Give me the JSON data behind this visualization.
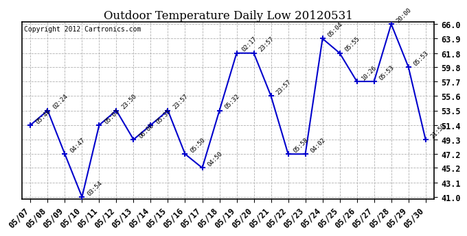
{
  "title": "Outdoor Temperature Daily Low 20120531",
  "copyright": "Copyright 2012 Cartronics.com",
  "x_labels": [
    "05/07",
    "05/08",
    "05/09",
    "05/10",
    "05/11",
    "05/12",
    "05/13",
    "05/14",
    "05/15",
    "05/16",
    "05/17",
    "05/18",
    "05/19",
    "05/20",
    "05/21",
    "05/22",
    "05/23",
    "05/24",
    "05/25",
    "05/26",
    "05/27",
    "05/28",
    "05/29",
    "05/30"
  ],
  "y_values": [
    51.4,
    53.5,
    47.2,
    41.0,
    51.4,
    53.5,
    49.3,
    51.4,
    53.5,
    47.2,
    45.2,
    53.5,
    61.8,
    61.8,
    55.6,
    47.2,
    47.2,
    63.9,
    61.8,
    57.7,
    57.7,
    66.0,
    59.8,
    49.3
  ],
  "point_labels": [
    "05:46",
    "02:24",
    "04:47",
    "03:54",
    "05:03",
    "23:50",
    "06:06",
    "05:35",
    "23:57",
    "05:50",
    "04:50",
    "05:32",
    "02:17",
    "23:57",
    "23:57",
    "05:58",
    "04:02",
    "05:04",
    "05:55",
    "10:26",
    "05:53",
    "20:00",
    "05:53",
    "21:50"
  ],
  "line_color": "#0000cc",
  "marker_color": "#0000cc",
  "bg_color": "#ffffff",
  "grid_color": "#b0b0b0",
  "ylim_min": 41.0,
  "ylim_max": 66.0,
  "yticks": [
    41.0,
    43.1,
    45.2,
    47.2,
    49.3,
    51.4,
    53.5,
    55.6,
    57.7,
    59.8,
    61.8,
    63.9,
    66.0
  ],
  "title_fontsize": 12,
  "label_fontsize": 6.5,
  "tick_fontsize": 8.5,
  "copyright_fontsize": 7,
  "xlabel_rotation": 45
}
